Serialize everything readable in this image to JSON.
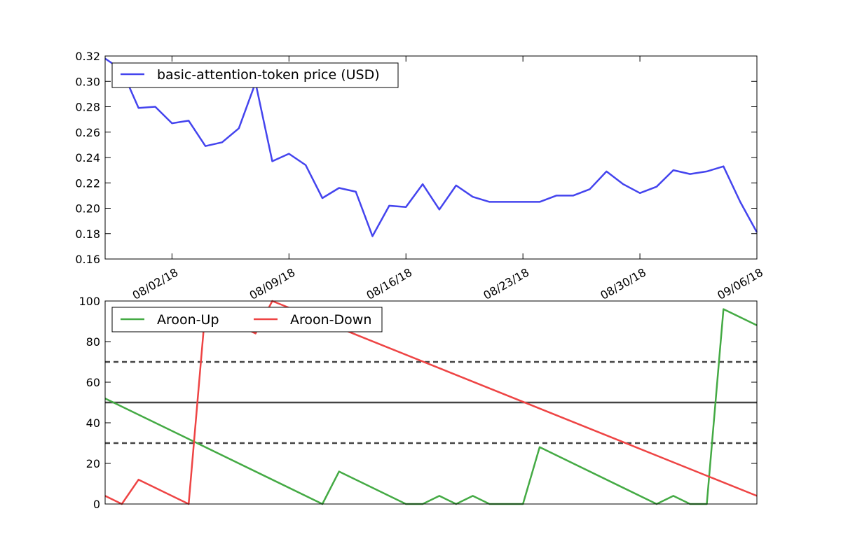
{
  "chart_data": [
    {
      "type": "line",
      "title": "",
      "xlabel": "",
      "ylabel": "",
      "x_tick_labels": [
        "08/02/18",
        "08/09/18",
        "08/16/18",
        "08/23/18",
        "08/30/18",
        "09/06/18"
      ],
      "x_tick_days": [
        4,
        11,
        18,
        25,
        32,
        39
      ],
      "xlim_days": [
        0,
        39
      ],
      "ylim": [
        0.16,
        0.32
      ],
      "y_ticks": [
        "0.16",
        "0.18",
        "0.20",
        "0.22",
        "0.24",
        "0.26",
        "0.28",
        "0.30",
        "0.32"
      ],
      "legend_position": "top-left",
      "series": [
        {
          "name": "basic-attention-token price (USD)",
          "color": "#4444ee",
          "values": [
            0.318,
            0.309,
            0.279,
            0.28,
            0.267,
            0.269,
            0.249,
            0.252,
            0.263,
            0.299,
            0.237,
            0.243,
            0.234,
            0.208,
            0.216,
            0.213,
            0.178,
            0.202,
            0.201,
            0.219,
            0.199,
            0.218,
            0.209,
            0.205,
            0.205,
            0.205,
            0.205,
            0.21,
            0.21,
            0.215,
            0.229,
            0.219,
            0.212,
            0.217,
            0.23,
            0.227,
            0.229,
            0.233,
            0.205,
            0.181
          ]
        }
      ]
    },
    {
      "type": "line",
      "title": "",
      "xlabel": "",
      "ylabel": "",
      "xlim_days": [
        0,
        39
      ],
      "ylim": [
        0,
        100
      ],
      "y_ticks": [
        "0",
        "20",
        "40",
        "60",
        "80",
        "100"
      ],
      "legend_position": "top-left",
      "reference_lines": [
        {
          "value": 70,
          "style": "dashed",
          "color": "#444444"
        },
        {
          "value": 50,
          "style": "solid",
          "color": "#444444"
        },
        {
          "value": 30,
          "style": "dashed",
          "color": "#444444"
        }
      ],
      "series": [
        {
          "name": "Aroon-Up",
          "color": "#44aa44",
          "points": [
            [
              0,
              52
            ],
            [
              13,
              0
            ],
            [
              14,
              16
            ],
            [
              18,
              0
            ],
            [
              19,
              0
            ],
            [
              20,
              4
            ],
            [
              21,
              0
            ],
            [
              22,
              4
            ],
            [
              23,
              0
            ],
            [
              25,
              0
            ],
            [
              26,
              28
            ],
            [
              33,
              0
            ],
            [
              34,
              4
            ],
            [
              35,
              0
            ],
            [
              36,
              0
            ],
            [
              37,
              96
            ],
            [
              39,
              88
            ]
          ]
        },
        {
          "name": "Aroon-Down",
          "color": "#ee4444",
          "points": [
            [
              0,
              4
            ],
            [
              1,
              0
            ],
            [
              2,
              12
            ],
            [
              5,
              0
            ],
            [
              6,
              96
            ],
            [
              9,
              84
            ],
            [
              10,
              100
            ],
            [
              39,
              4
            ]
          ]
        }
      ]
    }
  ]
}
